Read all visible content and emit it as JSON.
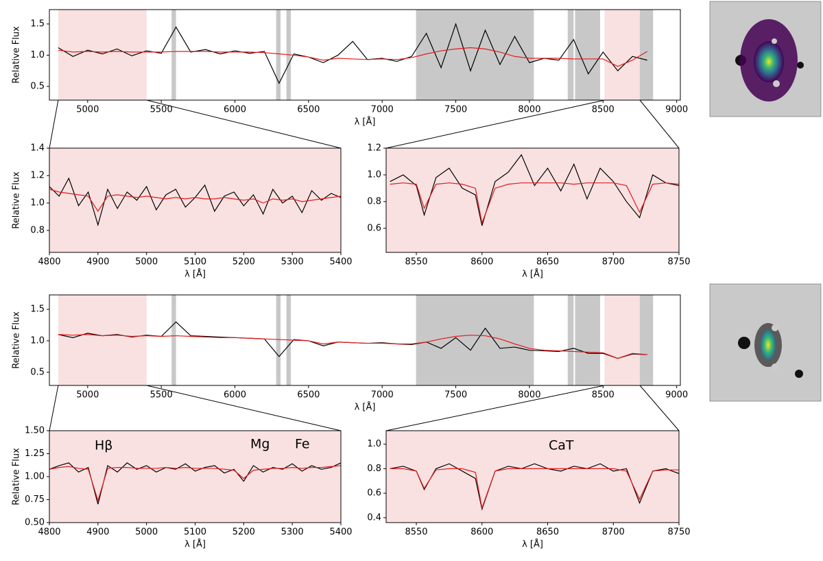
{
  "chart_data": [
    {
      "type": "line",
      "ylabel": "Relative Flux",
      "xlabel": "λ [Å]",
      "xlim": [
        4740,
        9025
      ],
      "ylim": [
        0.28,
        1.73
      ],
      "xticks": [
        5000,
        5500,
        6000,
        6500,
        7000,
        7500,
        8000,
        8500,
        9000
      ],
      "yticks": [
        0.5,
        {
          "value": 1,
          "label": "1.0"
        },
        1.5
      ],
      "spans": [
        {
          "range": [
            4800,
            5400
          ],
          "color": "#f9e1e1"
        },
        {
          "range": [
            8510,
            8750
          ],
          "color": "#f9e1e1"
        },
        {
          "range": [
            5570,
            5600
          ],
          "color": "#c8c8c8"
        },
        {
          "range": [
            6280,
            6310
          ],
          "color": "#c8c8c8"
        },
        {
          "range": [
            6350,
            6380
          ],
          "color": "#c8c8c8"
        },
        {
          "range": [
            7230,
            8030
          ],
          "color": "#c8c8c8"
        },
        {
          "range": [
            8260,
            8300
          ],
          "color": "#c8c8c8"
        },
        {
          "range": [
            8310,
            8480
          ],
          "color": "#c8c8c8"
        },
        {
          "range": [
            8750,
            8840
          ],
          "color": "#c8c8c8"
        }
      ],
      "x": [
        4800,
        4900,
        5000,
        5100,
        5200,
        5300,
        5400,
        5500,
        5600,
        5700,
        5800,
        5900,
        6000,
        6100,
        6200,
        6300,
        6400,
        6500,
        6600,
        6700,
        6800,
        6900,
        7000,
        7100,
        7200,
        7300,
        7400,
        7500,
        7600,
        7700,
        7800,
        7900,
        8000,
        8100,
        8200,
        8300,
        8400,
        8500,
        8600,
        8700,
        8800
      ],
      "series": [
        {
          "color": "#000000",
          "values": [
            1.12,
            0.98,
            1.08,
            1.02,
            1.1,
            0.99,
            1.07,
            1.03,
            1.45,
            1.05,
            1.09,
            1.02,
            1.07,
            1.03,
            1.06,
            0.55,
            1.02,
            0.97,
            0.88,
            1.0,
            1.22,
            0.93,
            0.95,
            0.9,
            0.98,
            1.35,
            0.8,
            1.5,
            0.75,
            1.4,
            0.85,
            1.3,
            0.88,
            0.95,
            0.92,
            1.25,
            0.7,
            1.05,
            0.75,
            0.98,
            0.92
          ]
        },
        {
          "color": "#e41a1c",
          "values": [
            1.08,
            1.05,
            1.06,
            1.05,
            1.06,
            1.05,
            1.05,
            1.05,
            1.06,
            1.06,
            1.06,
            1.05,
            1.05,
            1.05,
            1.04,
            1.02,
            1.0,
            0.97,
            0.92,
            0.95,
            0.94,
            0.93,
            0.94,
            0.93,
            0.96,
            1.02,
            1.07,
            1.1,
            1.12,
            1.1,
            1.05,
            0.98,
            0.95,
            0.95,
            0.95,
            0.94,
            0.94,
            0.94,
            0.82,
            0.92,
            1.06
          ]
        }
      ]
    },
    {
      "type": "line",
      "ylabel": "Relative Flux",
      "xlabel": "λ [Å]",
      "xlim": [
        4800,
        5400
      ],
      "ylim": [
        0.64,
        1.4
      ],
      "xticks": [
        4800,
        4900,
        5000,
        5100,
        5200,
        5300,
        5400
      ],
      "yticks": [
        0.8,
        {
          "value": 1,
          "label": "1.0"
        },
        1.2,
        1.4
      ],
      "spans": [
        {
          "range": [
            4800,
            5400
          ],
          "color": "#f9e1e1"
        }
      ],
      "x": [
        4800,
        4820,
        4840,
        4860,
        4880,
        4900,
        4920,
        4940,
        4960,
        4980,
        5000,
        5020,
        5040,
        5060,
        5080,
        5100,
        5120,
        5140,
        5160,
        5180,
        5200,
        5220,
        5240,
        5260,
        5280,
        5300,
        5320,
        5340,
        5360,
        5380,
        5400
      ],
      "series": [
        {
          "color": "#000000",
          "values": [
            1.12,
            1.05,
            1.18,
            0.98,
            1.08,
            0.84,
            1.1,
            0.96,
            1.08,
            1.02,
            1.12,
            0.95,
            1.06,
            1.1,
            0.97,
            1.04,
            1.13,
            0.94,
            1.05,
            1.08,
            0.98,
            1.06,
            0.92,
            1.1,
            1.0,
            1.05,
            0.93,
            1.09,
            1.02,
            1.07,
            1.04
          ]
        },
        {
          "color": "#e41a1c",
          "values": [
            1.1,
            1.08,
            1.07,
            1.06,
            1.05,
            0.94,
            1.05,
            1.06,
            1.05,
            1.04,
            1.05,
            1.04,
            1.03,
            1.04,
            1.03,
            1.04,
            1.03,
            1.03,
            1.04,
            1.03,
            1.02,
            1.03,
            1.0,
            1.03,
            1.02,
            1.03,
            1.01,
            1.02,
            1.03,
            1.04,
            1.05
          ]
        }
      ]
    },
    {
      "type": "line",
      "xlabel": "λ [Å]",
      "xlim": [
        8527,
        8750
      ],
      "ylim": [
        0.42,
        1.2
      ],
      "xticks": [
        8550,
        8600,
        8650,
        8700,
        8750
      ],
      "yticks": [
        0.6,
        0.8,
        {
          "value": 1,
          "label": "1.0"
        },
        1.2
      ],
      "spans": [
        {
          "range": [
            8510,
            8750
          ],
          "color": "#f9e1e1"
        }
      ],
      "x": [
        8530,
        8540,
        8550,
        8556,
        8565,
        8575,
        8585,
        8595,
        8600,
        8610,
        8620,
        8630,
        8640,
        8650,
        8660,
        8670,
        8680,
        8690,
        8700,
        8710,
        8720,
        8730,
        8740,
        8750
      ],
      "series": [
        {
          "color": "#000000",
          "values": [
            0.95,
            1.0,
            0.92,
            0.7,
            0.98,
            1.05,
            0.9,
            0.85,
            0.62,
            0.95,
            1.02,
            1.15,
            0.92,
            1.05,
            0.88,
            1.08,
            0.82,
            1.05,
            0.95,
            0.8,
            0.68,
            1.0,
            0.94,
            0.92
          ]
        },
        {
          "color": "#e41a1c",
          "values": [
            0.93,
            0.94,
            0.93,
            0.75,
            0.93,
            0.94,
            0.93,
            0.9,
            0.64,
            0.9,
            0.93,
            0.94,
            0.94,
            0.94,
            0.94,
            0.93,
            0.94,
            0.94,
            0.94,
            0.92,
            0.72,
            0.93,
            0.94,
            0.93
          ]
        }
      ]
    },
    {
      "type": "line",
      "ylabel": "Relative Flux",
      "xlabel": "λ [Å]",
      "xlim": [
        4740,
        9025
      ],
      "ylim": [
        0.29,
        1.73
      ],
      "xticks": [
        5000,
        5500,
        6000,
        6500,
        7000,
        7500,
        8000,
        8500,
        9000
      ],
      "yticks": [
        0.5,
        {
          "value": 1,
          "label": "1.0"
        },
        1.5
      ],
      "spans": [
        {
          "range": [
            4800,
            5400
          ],
          "color": "#f9e1e1"
        },
        {
          "range": [
            8510,
            8750
          ],
          "color": "#f9e1e1"
        },
        {
          "range": [
            5570,
            5600
          ],
          "color": "#c8c8c8"
        },
        {
          "range": [
            6280,
            6310
          ],
          "color": "#c8c8c8"
        },
        {
          "range": [
            6350,
            6380
          ],
          "color": "#c8c8c8"
        },
        {
          "range": [
            7230,
            8030
          ],
          "color": "#c8c8c8"
        },
        {
          "range": [
            8260,
            8300
          ],
          "color": "#c8c8c8"
        },
        {
          "range": [
            8310,
            8480
          ],
          "color": "#c8c8c8"
        },
        {
          "range": [
            8750,
            8840
          ],
          "color": "#c8c8c8"
        }
      ],
      "x": [
        4800,
        4900,
        5000,
        5100,
        5200,
        5300,
        5400,
        5500,
        5600,
        5700,
        5800,
        5900,
        6000,
        6100,
        6200,
        6300,
        6400,
        6500,
        6600,
        6700,
        6800,
        6900,
        7000,
        7100,
        7200,
        7300,
        7400,
        7500,
        7600,
        7700,
        7800,
        7900,
        8000,
        8100,
        8200,
        8300,
        8400,
        8500,
        8600,
        8700,
        8800
      ],
      "series": [
        {
          "color": "#000000",
          "values": [
            1.1,
            1.05,
            1.12,
            1.08,
            1.1,
            1.06,
            1.09,
            1.07,
            1.3,
            1.08,
            1.07,
            1.06,
            1.05,
            1.04,
            1.03,
            0.75,
            1.02,
            1.0,
            0.92,
            0.98,
            0.97,
            0.96,
            0.97,
            0.95,
            0.94,
            0.98,
            0.88,
            1.05,
            0.85,
            1.2,
            0.88,
            0.9,
            0.85,
            0.84,
            0.83,
            0.88,
            0.8,
            0.8,
            0.72,
            0.79,
            0.78
          ]
        },
        {
          "color": "#e41a1c",
          "values": [
            1.1,
            1.09,
            1.1,
            1.08,
            1.09,
            1.07,
            1.08,
            1.07,
            1.08,
            1.07,
            1.06,
            1.05,
            1.05,
            1.04,
            1.03,
            1.02,
            1.01,
            1.0,
            0.95,
            0.98,
            0.97,
            0.96,
            0.96,
            0.95,
            0.95,
            0.98,
            1.03,
            1.07,
            1.09,
            1.08,
            1.03,
            0.95,
            0.88,
            0.85,
            0.84,
            0.83,
            0.82,
            0.81,
            0.72,
            0.8,
            0.78
          ]
        }
      ]
    },
    {
      "type": "line",
      "ylabel": "Relative Flux",
      "xlabel": "λ [Å]",
      "xlim": [
        4800,
        5400
      ],
      "ylim": [
        0.5,
        1.5
      ],
      "xticks": [
        4800,
        4900,
        5000,
        5100,
        5200,
        5300,
        5400
      ],
      "yticks": [
        {
          "value": 0.5,
          "label": "0.50"
        },
        0.75,
        {
          "value": 1,
          "label": "1.00"
        },
        1.25,
        {
          "value": 1.5,
          "label": "1.50"
        }
      ],
      "spans": [
        {
          "range": [
            4800,
            5400
          ],
          "color": "#f9e1e1"
        }
      ],
      "annotations": [
        "Hβ",
        "Mg",
        "Fe"
      ],
      "x": [
        4800,
        4820,
        4840,
        4860,
        4880,
        4900,
        4920,
        4940,
        4960,
        4980,
        5000,
        5020,
        5040,
        5060,
        5080,
        5100,
        5120,
        5140,
        5160,
        5180,
        5200,
        5220,
        5240,
        5260,
        5280,
        5300,
        5320,
        5340,
        5360,
        5380,
        5400
      ],
      "series": [
        {
          "color": "#000000",
          "values": [
            1.08,
            1.12,
            1.15,
            1.05,
            1.1,
            0.7,
            1.12,
            1.05,
            1.15,
            1.08,
            1.12,
            1.05,
            1.1,
            1.08,
            1.14,
            1.06,
            1.1,
            1.12,
            1.04,
            1.08,
            0.95,
            1.12,
            1.05,
            1.1,
            1.08,
            1.14,
            1.06,
            1.12,
            1.08,
            1.1,
            1.15
          ]
        },
        {
          "color": "#e41a1c",
          "values": [
            1.08,
            1.1,
            1.11,
            1.09,
            1.08,
            0.74,
            1.09,
            1.1,
            1.1,
            1.09,
            1.09,
            1.09,
            1.1,
            1.09,
            1.1,
            1.09,
            1.09,
            1.09,
            1.08,
            1.07,
            0.98,
            1.07,
            1.08,
            1.09,
            1.09,
            1.1,
            1.09,
            1.1,
            1.1,
            1.11,
            1.12
          ]
        }
      ]
    },
    {
      "type": "line",
      "xlabel": "λ [Å]",
      "xlim": [
        8527,
        8750
      ],
      "ylim": [
        0.36,
        1.11
      ],
      "xticks": [
        8550,
        8600,
        8650,
        8700,
        8750
      ],
      "yticks": [
        0.4,
        0.6,
        0.8,
        {
          "value": 1,
          "label": "1.0"
        }
      ],
      "spans": [
        {
          "range": [
            8510,
            8750
          ],
          "color": "#f9e1e1"
        }
      ],
      "annotations": [
        "CaT"
      ],
      "x": [
        8530,
        8540,
        8550,
        8556,
        8565,
        8575,
        8585,
        8595,
        8600,
        8610,
        8620,
        8630,
        8640,
        8650,
        8660,
        8670,
        8680,
        8690,
        8700,
        8710,
        8720,
        8730,
        8740,
        8750
      ],
      "series": [
        {
          "color": "#000000",
          "values": [
            0.8,
            0.82,
            0.78,
            0.63,
            0.8,
            0.84,
            0.78,
            0.72,
            0.47,
            0.78,
            0.82,
            0.8,
            0.84,
            0.8,
            0.78,
            0.82,
            0.8,
            0.84,
            0.78,
            0.8,
            0.52,
            0.78,
            0.8,
            0.76
          ]
        },
        {
          "color": "#e41a1c",
          "values": [
            0.8,
            0.8,
            0.78,
            0.64,
            0.79,
            0.8,
            0.8,
            0.77,
            0.48,
            0.78,
            0.8,
            0.8,
            0.8,
            0.8,
            0.8,
            0.8,
            0.8,
            0.8,
            0.8,
            0.78,
            0.55,
            0.78,
            0.79,
            0.79
          ]
        }
      ]
    }
  ]
}
